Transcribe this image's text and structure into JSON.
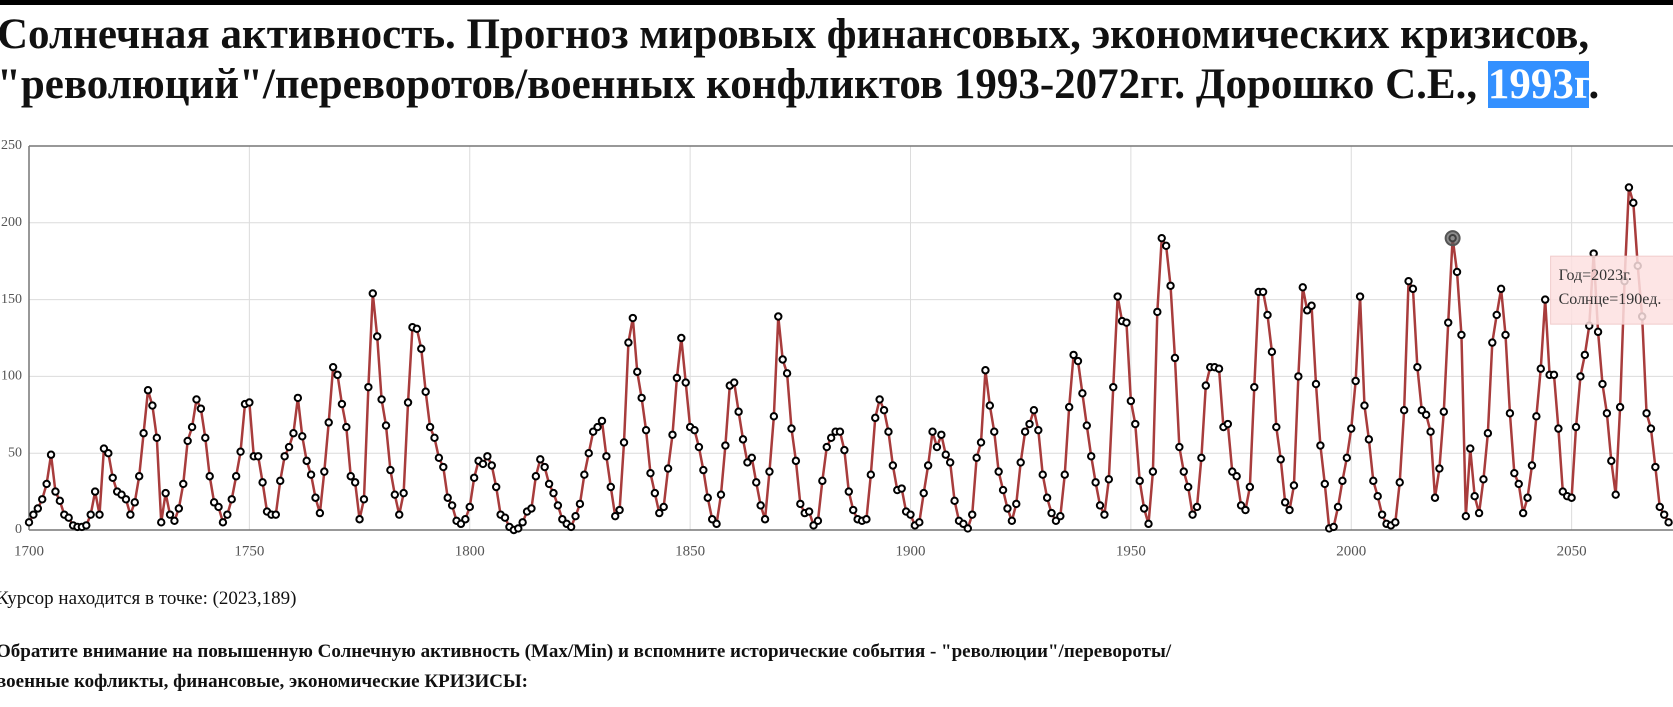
{
  "chart_data": {
    "type": "line",
    "title": [
      "Солнечная активность. Прогноз мировых финансовых, экономических кризисов,",
      "\"революций\"/переворотов/военных конфликтов 1993-2072гг. Дорошко С.Е., "
    ],
    "title_selected": "1993г",
    "title_end": ".",
    "x": [
      1700,
      1701,
      1702,
      1703,
      1704,
      1705,
      1706,
      1707,
      1708,
      1709,
      1710,
      1711,
      1712,
      1713,
      1714,
      1715,
      1716,
      1717,
      1718,
      1719,
      1720,
      1721,
      1722,
      1723,
      1724,
      1725,
      1726,
      1727,
      1728,
      1729,
      1730,
      1731,
      1732,
      1733,
      1734,
      1735,
      1736,
      1737,
      1738,
      1739,
      1740,
      1741,
      1742,
      1743,
      1744,
      1745,
      1746,
      1747,
      1748,
      1749,
      1750,
      1751,
      1752,
      1753,
      1754,
      1755,
      1756,
      1757,
      1758,
      1759,
      1760,
      1761,
      1762,
      1763,
      1764,
      1765,
      1766,
      1767,
      1768,
      1769,
      1770,
      1771,
      1772,
      1773,
      1774,
      1775,
      1776,
      1777,
      1778,
      1779,
      1780,
      1781,
      1782,
      1783,
      1784,
      1785,
      1786,
      1787,
      1788,
      1789,
      1790,
      1791,
      1792,
      1793,
      1794,
      1795,
      1796,
      1797,
      1798,
      1799,
      1800,
      1801,
      1802,
      1803,
      1804,
      1805,
      1806,
      1807,
      1808,
      1809,
      1810,
      1811,
      1812,
      1813,
      1814,
      1815,
      1816,
      1817,
      1818,
      1819,
      1820,
      1821,
      1822,
      1823,
      1824,
      1825,
      1826,
      1827,
      1828,
      1829,
      1830,
      1831,
      1832,
      1833,
      1834,
      1835,
      1836,
      1837,
      1838,
      1839,
      1840,
      1841,
      1842,
      1843,
      1844,
      1845,
      1846,
      1847,
      1848,
      1849,
      1850,
      1851,
      1852,
      1853,
      1854,
      1855,
      1856,
      1857,
      1858,
      1859,
      1860,
      1861,
      1862,
      1863,
      1864,
      1865,
      1866,
      1867,
      1868,
      1869,
      1870,
      1871,
      1872,
      1873,
      1874,
      1875,
      1876,
      1877,
      1878,
      1879,
      1880,
      1881,
      1882,
      1883,
      1884,
      1885,
      1886,
      1887,
      1888,
      1889,
      1890,
      1891,
      1892,
      1893,
      1894,
      1895,
      1896,
      1897,
      1898,
      1899,
      1900,
      1901,
      1902,
      1903,
      1904,
      1905,
      1906,
      1907,
      1908,
      1909,
      1910,
      1911,
      1912,
      1913,
      1914,
      1915,
      1916,
      1917,
      1918,
      1919,
      1920,
      1921,
      1922,
      1923,
      1924,
      1925,
      1926,
      1927,
      1928,
      1929,
      1930,
      1931,
      1932,
      1933,
      1934,
      1935,
      1936,
      1937,
      1938,
      1939,
      1940,
      1941,
      1942,
      1943,
      1944,
      1945,
      1946,
      1947,
      1948,
      1949,
      1950,
      1951,
      1952,
      1953,
      1954,
      1955,
      1956,
      1957,
      1958,
      1959,
      1960,
      1961,
      1962,
      1963,
      1964,
      1965,
      1966,
      1967,
      1968,
      1969,
      1970,
      1971,
      1972,
      1973,
      1974,
      1975,
      1976,
      1977,
      1978,
      1979,
      1980,
      1981,
      1982,
      1983,
      1984,
      1985,
      1986,
      1987,
      1988,
      1989,
      1990,
      1991,
      1992,
      1993,
      1994,
      1995,
      1996,
      1997,
      1998,
      1999,
      2000,
      2001,
      2002,
      2003,
      2004,
      2005,
      2006,
      2007,
      2008,
      2009,
      2010,
      2011,
      2012,
      2013,
      2014,
      2015,
      2016,
      2017,
      2018,
      2019,
      2020,
      2021,
      2022,
      2023,
      2024,
      2025,
      2026,
      2027,
      2028,
      2029,
      2030,
      2031,
      2032,
      2033,
      2034,
      2035,
      2036,
      2037,
      2038,
      2039,
      2040,
      2041,
      2042,
      2043,
      2044,
      2045,
      2046,
      2047,
      2048,
      2049,
      2050,
      2051,
      2052,
      2053,
      2054,
      2055,
      2056,
      2057,
      2058,
      2059,
      2060,
      2061,
      2062,
      2063,
      2064,
      2065,
      2066,
      2067,
      2068,
      2069,
      2070,
      2071,
      2072
    ],
    "series": [
      {
        "color": "#a83c3c",
        "values": [
          5,
          10,
          14,
          20,
          30,
          49,
          25,
          19,
          10,
          8,
          3,
          2,
          2,
          3,
          10,
          25,
          10,
          53,
          50,
          34,
          25,
          23,
          20,
          10,
          18,
          35,
          63,
          91,
          81,
          60,
          5,
          24,
          10,
          6,
          14,
          30,
          58,
          67,
          85,
          79,
          60,
          35,
          18,
          15,
          5,
          10,
          20,
          35,
          51,
          82,
          83,
          48,
          48,
          31,
          12,
          10,
          10,
          32,
          48,
          54,
          63,
          86,
          61,
          45,
          36,
          21,
          11,
          38,
          70,
          106,
          101,
          82,
          67,
          35,
          31,
          7,
          20,
          93,
          154,
          126,
          85,
          68,
          39,
          23,
          10,
          24,
          83,
          132,
          131,
          118,
          90,
          67,
          60,
          47,
          41,
          21,
          16,
          6,
          4,
          7,
          15,
          34,
          45,
          43,
          48,
          42,
          28,
          10,
          8,
          2,
          0,
          1,
          5,
          12,
          14,
          35,
          46,
          41,
          30,
          24,
          16,
          7,
          4,
          2,
          9,
          17,
          36,
          50,
          64,
          67,
          71,
          48,
          28,
          9,
          13,
          57,
          122,
          138,
          103,
          86,
          65,
          37,
          24,
          11,
          15,
          40,
          62,
          99,
          125,
          96,
          67,
          65,
          54,
          39,
          21,
          7,
          4,
          23,
          55,
          94,
          96,
          77,
          59,
          44,
          47,
          31,
          16,
          7,
          38,
          74,
          139,
          111,
          102,
          66,
          45,
          17,
          11,
          12,
          3,
          6,
          32,
          54,
          60,
          64,
          64,
          52,
          25,
          13,
          7,
          6,
          7,
          36,
          73,
          85,
          78,
          64,
          42,
          26,
          27,
          12,
          10,
          3,
          5,
          24,
          42,
          64,
          54,
          62,
          49,
          44,
          19,
          6,
          4,
          1,
          10,
          47,
          57,
          104,
          81,
          64,
          38,
          26,
          14,
          6,
          17,
          44,
          64,
          69,
          78,
          65,
          36,
          21,
          11,
          6,
          9,
          36,
          80,
          114,
          110,
          89,
          68,
          48,
          31,
          16,
          10,
          33,
          93,
          152,
          136,
          135,
          84,
          69,
          32,
          14,
          4,
          38,
          142,
          190,
          185,
          159,
          112,
          54,
          38,
          28,
          10,
          15,
          47,
          94,
          106,
          106,
          105,
          67,
          69,
          38,
          35,
          16,
          13,
          28,
          93,
          155,
          155,
          140,
          116,
          67,
          46,
          18,
          13,
          29,
          100,
          158,
          143,
          146,
          95,
          55,
          30,
          1,
          2,
          15,
          32,
          47,
          66,
          97,
          152,
          81,
          59,
          32,
          22,
          10,
          4,
          3,
          5,
          31,
          78,
          162,
          157,
          106,
          78,
          75,
          64,
          21,
          40,
          77,
          135,
          190,
          168,
          127,
          9,
          53,
          22,
          11,
          33,
          63,
          122,
          140,
          157,
          127,
          76,
          37,
          30,
          11,
          21,
          42,
          74,
          105,
          150,
          101,
          101,
          66,
          25,
          22,
          21,
          67,
          100,
          114,
          133,
          180,
          129,
          95,
          76,
          45,
          23,
          80,
          162,
          223,
          213,
          172,
          139,
          76,
          66,
          41,
          15,
          10,
          5
        ]
      }
    ],
    "xlim": [
      1700,
      2073
    ],
    "ylim": [
      0,
      250
    ],
    "xticks": [
      1700,
      1750,
      1800,
      1850,
      1900,
      1950,
      2000,
      2050
    ],
    "yticks": [
      0,
      50,
      100,
      150,
      200,
      250
    ],
    "grid": true,
    "highlight_index": 323,
    "tooltip": [
      "Год=2023г.",
      "Солнце=190ед."
    ],
    "cursor_text": "Курсор находится в точке: (2023,189)",
    "note": [
      "Обратите внимание на повышенную Солнечную активность (Max/Min) и вспомните исторические события - \"революции\"/перевороты/",
      "военные кофликты, финансовые, экономические КРИЗИСЫ:"
    ]
  }
}
